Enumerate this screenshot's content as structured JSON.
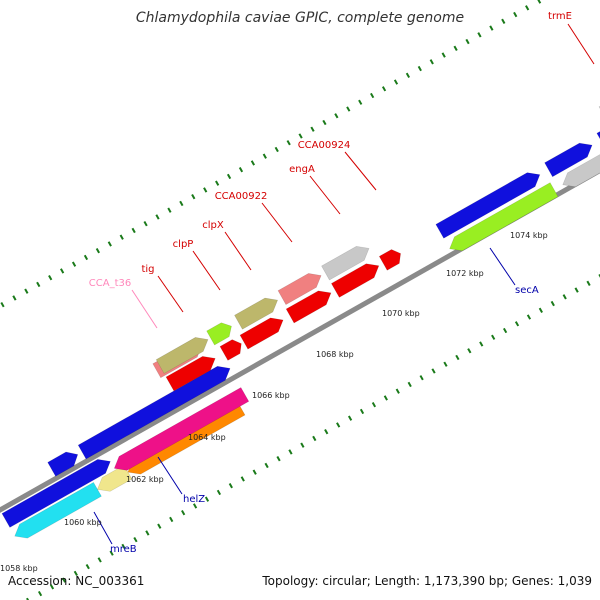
{
  "title": "Chlamydophila caviae GPIC, complete genome",
  "accession": "Accession: NC_003361",
  "topology": "Topology: circular; Length: 1,173,390 bp; Genes: 1,039",
  "kbp_labels": [
    "1058 kbp",
    "1060 kbp",
    "1062 kbp",
    "1064 kbp",
    "1066 kbp",
    "1068 kbp",
    "1070 kbp",
    "1072 kbp",
    "1074 kbp"
  ],
  "gene_labels_top": [
    "CCA_t36",
    "tig",
    "clpP",
    "clpX",
    "CCA00922",
    "engA",
    "CCA00924",
    "trmE"
  ],
  "gene_labels_bottom": [
    "mreB",
    "helZ",
    "secA"
  ],
  "colors": {
    "backbone": "#8a8a8a",
    "tick": "#1a7a1a",
    "top_label": "#d40000",
    "trna_label": "#ff88bb",
    "bottom_label": "#0000aa",
    "gene_red": "#ee0000",
    "gene_blue": "#1010dd",
    "gene_khaki": "#bdb76b",
    "gene_gray": "#c8c8c8",
    "gene_green": "#99ee22",
    "gene_cyan": "#22e0f0",
    "gene_magenta": "#ee1188",
    "gene_orange": "#ff8800",
    "gene_pink": "#f08080",
    "gene_beige": "#f0e68c",
    "gene_purple": "#7b68ee"
  }
}
